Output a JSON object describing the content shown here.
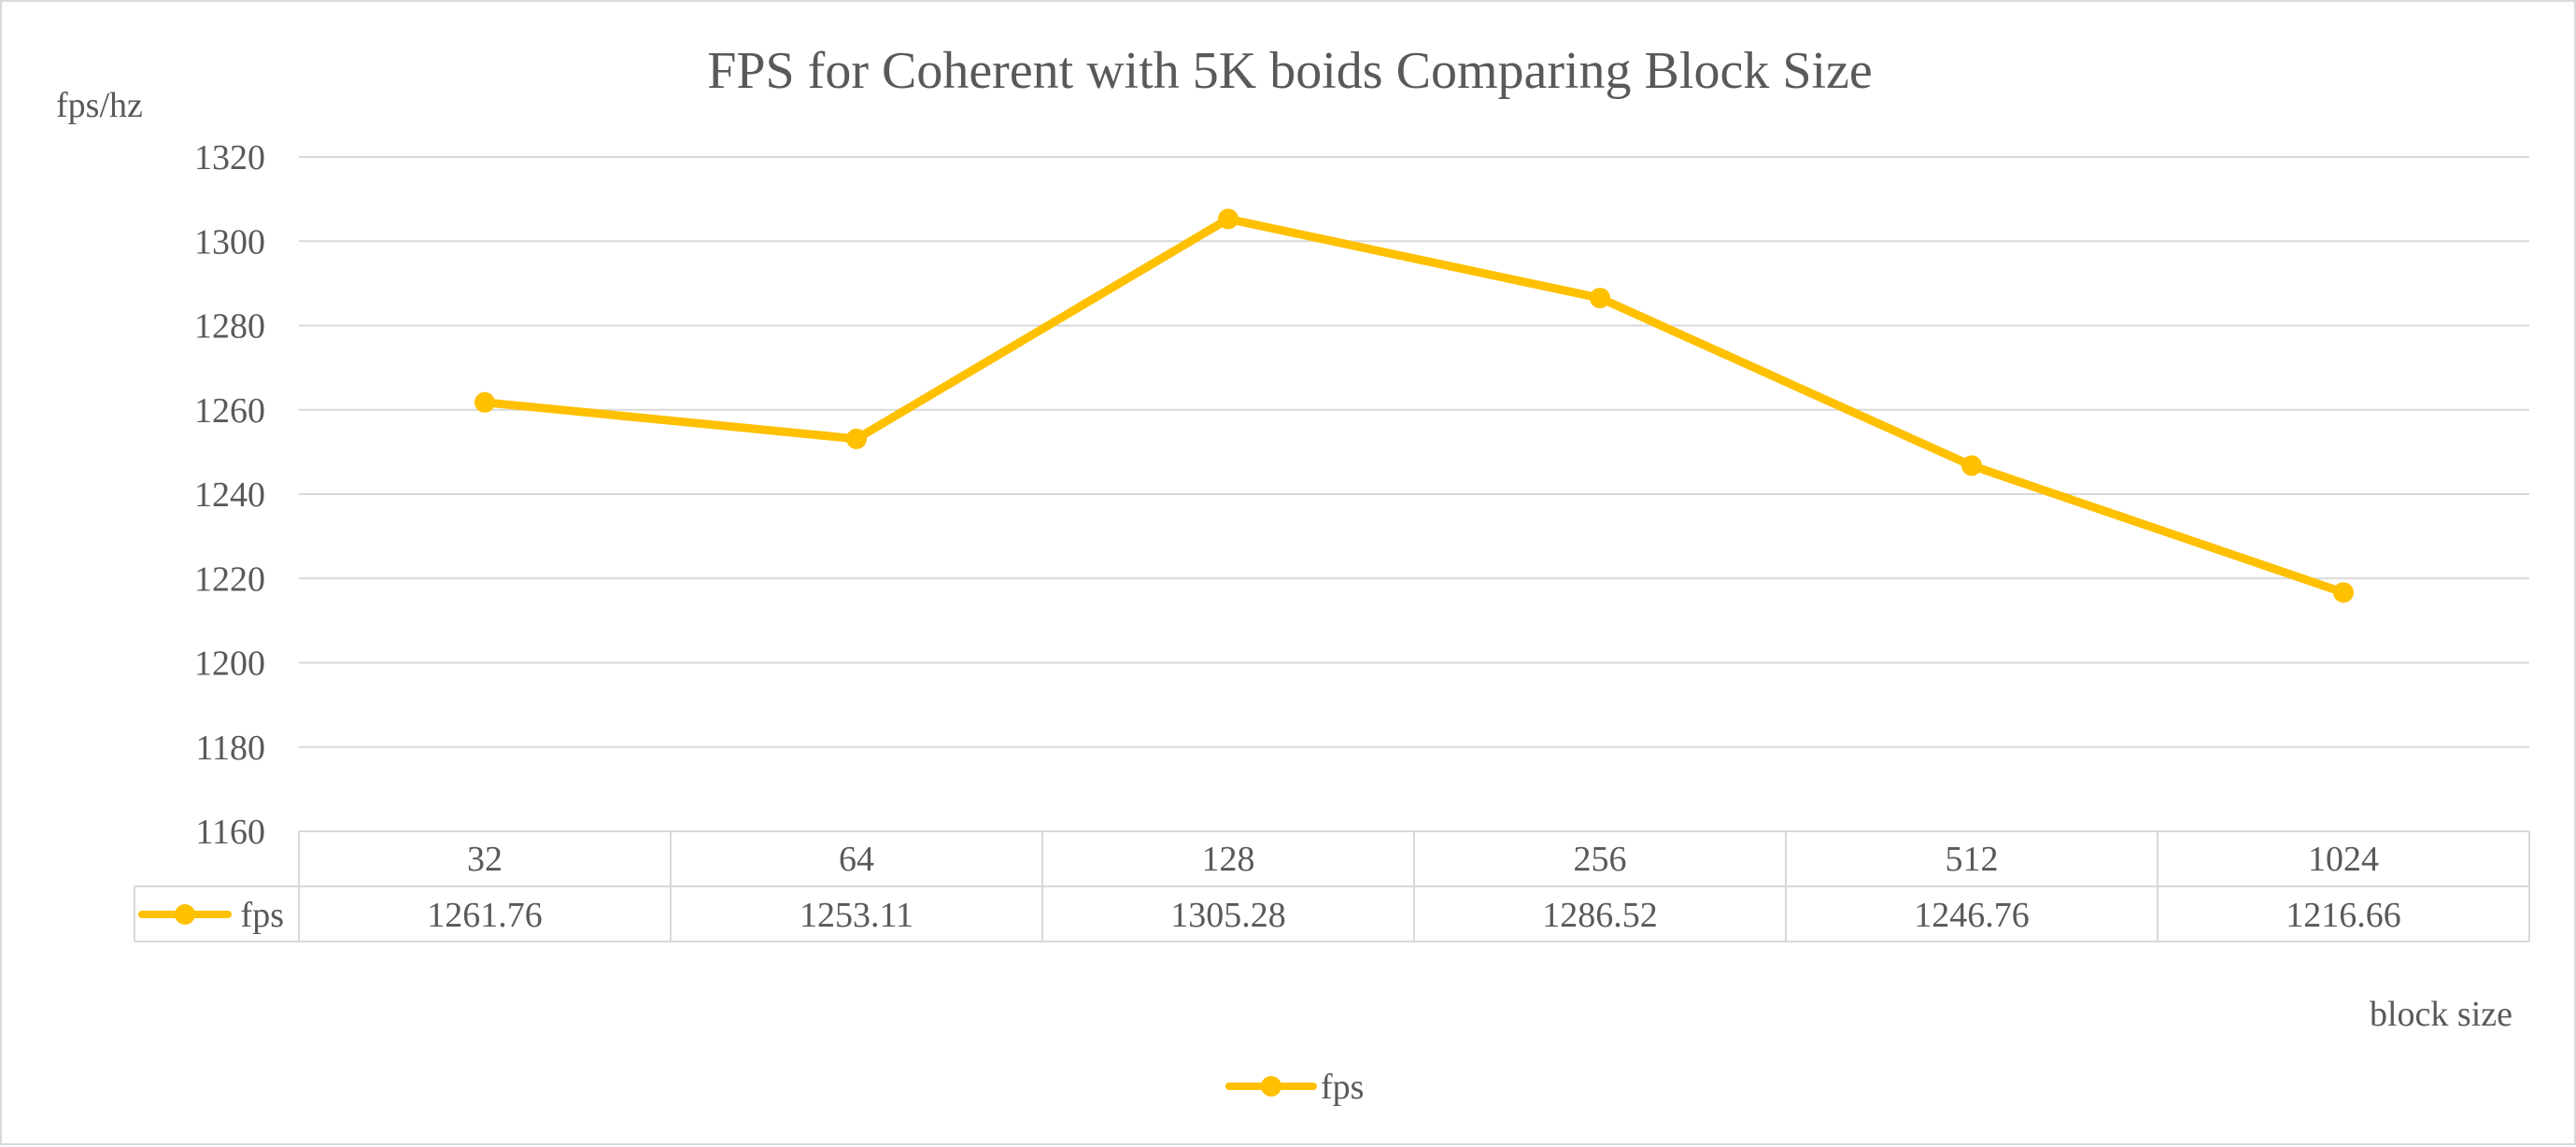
{
  "chart_data": {
    "type": "line",
    "title": "FPS for Coherent with 5K boids Comparing Block Size",
    "ylabel": "fps/hz",
    "xlabel": "block size",
    "categories": [
      "32",
      "64",
      "128",
      "256",
      "512",
      "1024"
    ],
    "series": [
      {
        "name": "fps",
        "values": [
          1261.76,
          1253.11,
          1305.28,
          1286.52,
          1246.76,
          1216.66
        ],
        "labels": [
          "1261.76",
          "1253.11",
          "1305.28",
          "1286.52",
          "1246.76",
          "1216.66"
        ]
      }
    ],
    "ylim": [
      1160,
      1320
    ],
    "yticks": [
      "1160",
      "1180",
      "1200",
      "1220",
      "1240",
      "1260",
      "1280",
      "1300",
      "1320"
    ],
    "grid": true,
    "data_table": true,
    "legend_position": "bottom",
    "colors": {
      "series": "#FFC000",
      "grid": "#d9d9d9",
      "text": "#595959",
      "border": "#d9d9d9"
    }
  }
}
